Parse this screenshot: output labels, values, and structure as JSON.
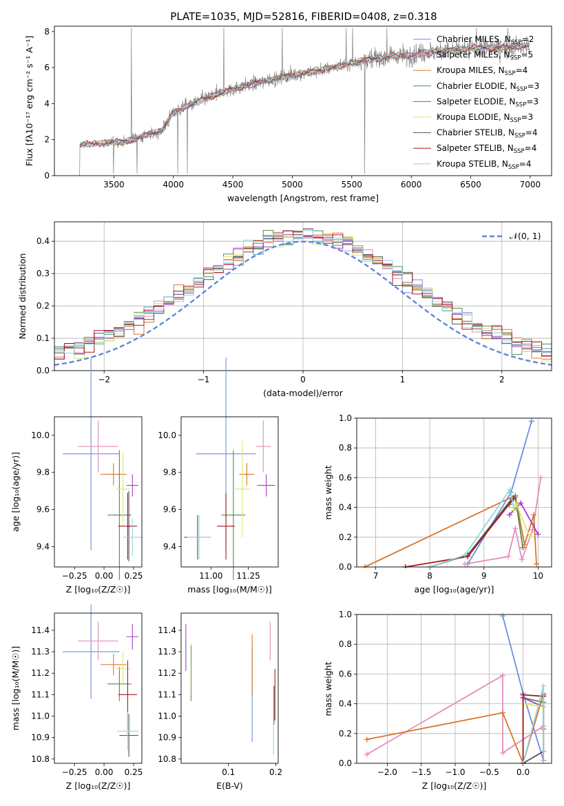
{
  "figure_title": "PLATE=1035, MJD=52816, FIBERID=0408, z=0.318",
  "colors": {
    "Chabrier MILES": "#6a8fd8",
    "Salpeter MILES": "#e48cbd",
    "Kroupa MILES": "#d8762a",
    "Chabrier ELODIE": "#4f8a4f",
    "Salpeter ELODIE": "#a13cc4",
    "Kroupa ELODIE": "#dde66a",
    "Chabrier STELIB": "#555555",
    "Salpeter STELIB": "#a8161b",
    "Kroupa STELIB": "#8fd6e4",
    "data": "#7f7f7f",
    "normal": "#5b87d8"
  },
  "chart_data": [
    {
      "id": "spectrum",
      "type": "line",
      "title": "PLATE=1035, MJD=52816, FIBERID=0408, z=0.318",
      "xlabel": "wavelength [Angstrom, rest frame]",
      "ylabel": "Flux [f$_\\lambda$10$^{-17}$ erg cm$^{-2}$ s$^{-1}$ A$^{-1}$]",
      "ylabel_text": "Flux [fλ10⁻¹⁷ erg cm⁻² s⁻¹ A⁻¹]",
      "xlim": [
        3000,
        7180
      ],
      "ylim": [
        0,
        8.3
      ],
      "xticks": [
        3500,
        4000,
        4500,
        5000,
        5500,
        6000,
        6500,
        7000
      ],
      "yticks": [
        0,
        2,
        4,
        6,
        8
      ],
      "legend_position": "top-right",
      "legend": [
        {
          "name": "Chabrier MILES",
          "label": "Chabrier MILES, N",
          "sub": "SSP",
          "tail": "=2"
        },
        {
          "name": "Salpeter MILES",
          "label": "Salpeter MILES, N",
          "sub": "SSP",
          "tail": "=5"
        },
        {
          "name": "Kroupa MILES",
          "label": "Kroupa MILES, N",
          "sub": "SSP",
          "tail": "=4"
        },
        {
          "name": "Chabrier ELODIE",
          "label": "Chabrier ELODIE, N",
          "sub": "SSP",
          "tail": "=3"
        },
        {
          "name": "Salpeter ELODIE",
          "label": "Salpeter ELODIE, N",
          "sub": "SSP",
          "tail": "=3"
        },
        {
          "name": "Kroupa ELODIE",
          "label": "Kroupa ELODIE, N",
          "sub": "SSP",
          "tail": "=3"
        },
        {
          "name": "Chabrier STELIB",
          "label": "Chabrier STELIB, N",
          "sub": "SSP",
          "tail": "=4"
        },
        {
          "name": "Salpeter STELIB",
          "label": "Salpeter STELIB, N",
          "sub": "SSP",
          "tail": "=4"
        },
        {
          "name": "Kroupa STELIB",
          "label": "Kroupa STELIB, N",
          "sub": "SSP",
          "tail": "=4"
        }
      ],
      "continuum": {
        "x": [
          3200,
          3400,
          3600,
          3800,
          3900,
          4000,
          4200,
          4400,
          4600,
          4800,
          5000,
          5200,
          5400,
          5600,
          5800,
          6000,
          6200,
          6400,
          6600,
          6800,
          7000
        ],
        "y": [
          1.7,
          1.8,
          1.9,
          2.3,
          2.5,
          3.5,
          4.1,
          4.6,
          5.0,
          5.3,
          5.6,
          5.8,
          6.1,
          6.4,
          6.6,
          6.7,
          6.9,
          7.0,
          7.1,
          7.1,
          7.2
        ]
      },
      "spectrum_start": 3200,
      "spectrum_end": 7000
    },
    {
      "id": "residuals",
      "type": "area",
      "xlabel": "(data-model)/error",
      "ylabel": "Normed distribution",
      "xlim": [
        -2.5,
        2.5
      ],
      "ylim": [
        0,
        0.46
      ],
      "xticks": [
        -2,
        -1,
        0,
        1,
        2
      ],
      "yticks": [
        0.0,
        0.1,
        0.2,
        0.3,
        0.4
      ],
      "grid": true,
      "legend_position": "top-right",
      "legend_label": "𝒩(0, 1)",
      "normal": {
        "mu": 0,
        "sigma": 1
      },
      "bin_width": 0.1
    },
    {
      "id": "age-vs-Z",
      "type": "scatter",
      "xlabel": "Z [log₁₀(Z/Z☉)]",
      "ylabel": "age  [log₁₀(age/yr)]",
      "xlim": [
        -0.42,
        0.32
      ],
      "ylim": [
        9.29,
        10.1
      ],
      "xticks": [
        -0.25,
        0.0,
        0.25
      ],
      "yticks": [
        9.4,
        9.6,
        9.8,
        10.0
      ],
      "points": [
        {
          "series": "Chabrier MILES",
          "x": -0.11,
          "y": 9.9,
          "xerr": 0.24,
          "yerr": 0.52
        },
        {
          "series": "Salpeter MILES",
          "x": -0.05,
          "y": 9.94,
          "xerr": 0.17,
          "yerr": 0.14
        },
        {
          "series": "Kroupa MILES",
          "x": 0.08,
          "y": 9.79,
          "xerr": 0.11,
          "yerr": 0.06
        },
        {
          "series": "Chabrier ELODIE",
          "x": 0.13,
          "y": 9.57,
          "xerr": 0.1,
          "yerr": 0.35
        },
        {
          "series": "Salpeter ELODIE",
          "x": 0.24,
          "y": 9.73,
          "xerr": 0.05,
          "yerr": 0.06
        },
        {
          "series": "Kroupa ELODIE",
          "x": 0.16,
          "y": 9.71,
          "xerr": 0.06,
          "yerr": 0.2
        },
        {
          "series": "Chabrier STELIB",
          "x": 0.21,
          "y": 9.51,
          "xerr": 0.02,
          "yerr": 0.19
        },
        {
          "series": "Salpeter STELIB",
          "x": 0.2,
          "y": 9.51,
          "xerr": 0.08,
          "yerr": 0.18
        },
        {
          "series": "Kroupa STELIB",
          "x": 0.24,
          "y": 9.45,
          "xerr": 0.08,
          "yerr": 0.1
        }
      ]
    },
    {
      "id": "age-vs-mass",
      "type": "scatter",
      "xlabel": "mass [log₁₀(M/M☉)]",
      "ylabel": "",
      "xlim": [
        10.8,
        11.45
      ],
      "ylim": [
        9.29,
        10.1
      ],
      "xticks": [
        11.0,
        11.25
      ],
      "yticks": [
        9.4,
        9.6,
        9.8,
        10.0
      ],
      "points": [
        {
          "series": "Chabrier MILES",
          "x": 11.1,
          "y": 9.9,
          "xerr": 0.2,
          "yerr": 0.52
        },
        {
          "series": "Salpeter MILES",
          "x": 11.35,
          "y": 9.94,
          "xerr": 0.05,
          "yerr": 0.14
        },
        {
          "series": "Kroupa MILES",
          "x": 11.24,
          "y": 9.79,
          "xerr": 0.05,
          "yerr": 0.06
        },
        {
          "series": "Chabrier ELODIE",
          "x": 11.15,
          "y": 9.57,
          "xerr": 0.08,
          "yerr": 0.35
        },
        {
          "series": "Salpeter ELODIE",
          "x": 11.37,
          "y": 9.73,
          "xerr": 0.06,
          "yerr": 0.06
        },
        {
          "series": "Kroupa ELODIE",
          "x": 11.21,
          "y": 9.71,
          "xerr": 0.05,
          "yerr": 0.26
        },
        {
          "series": "Chabrier STELIB",
          "x": 10.91,
          "y": 9.45,
          "xerr": 0.09,
          "yerr": 0.12
        },
        {
          "series": "Salpeter STELIB",
          "x": 11.1,
          "y": 9.51,
          "xerr": 0.06,
          "yerr": 0.18
        },
        {
          "series": "Kroupa STELIB",
          "x": 10.92,
          "y": 9.45,
          "xerr": 0.08,
          "yerr": 0.12
        }
      ]
    },
    {
      "id": "weight-vs-age",
      "type": "line",
      "xlabel": "age  [log₁₀(age/yr)]",
      "ylabel": "mass weight",
      "xlim": [
        6.65,
        10.25
      ],
      "ylim": [
        0,
        1.0
      ],
      "xticks": [
        7,
        8,
        9,
        10
      ],
      "yticks": [
        0.0,
        0.2,
        0.4,
        0.6,
        0.8,
        1.0
      ],
      "grid": true,
      "series": [
        {
          "name": "Chabrier MILES",
          "x": [
            8.7,
            9.5,
            9.88
          ],
          "y": [
            0.02,
            0.5,
            0.98
          ]
        },
        {
          "name": "Salpeter MILES",
          "x": [
            8.65,
            9.45,
            9.58,
            9.7,
            9.9,
            10.05
          ],
          "y": [
            0.02,
            0.07,
            0.26,
            0.05,
            0.25,
            0.6
          ]
        },
        {
          "name": "Kroupa MILES",
          "x": [
            6.8,
            9.58,
            9.75,
            9.92,
            9.97
          ],
          "y": [
            0.0,
            0.48,
            0.15,
            0.35,
            0.02
          ]
        },
        {
          "name": "Chabrier ELODIE",
          "x": [
            9.47,
            9.58,
            9.72
          ],
          "y": [
            0.42,
            0.47,
            0.13
          ]
        },
        {
          "name": "Salpeter ELODIE",
          "x": [
            9.47,
            9.68,
            10.0
          ],
          "y": [
            0.35,
            0.43,
            0.22
          ]
        },
        {
          "name": "Kroupa ELODIE",
          "x": [
            9.55,
            9.6,
            9.85
          ],
          "y": [
            0.38,
            0.42,
            0.2
          ]
        },
        {
          "name": "Chabrier STELIB",
          "x": [
            8.0,
            8.7,
            9.52
          ],
          "y": [
            0.0,
            0.08,
            0.46
          ]
        },
        {
          "name": "Salpeter STELIB",
          "x": [
            7.55,
            8.7,
            9.55
          ],
          "y": [
            0.0,
            0.07,
            0.46
          ]
        },
        {
          "name": "Kroupa STELIB",
          "x": [
            8.0,
            8.65,
            9.48,
            9.55
          ],
          "y": [
            0.0,
            0.08,
            0.52,
            0.4
          ]
        }
      ]
    },
    {
      "id": "mass-vs-Z",
      "type": "scatter",
      "xlabel": "Z [log₁₀(Z/Z☉)]",
      "ylabel": "mass [log₁₀(M/M☉)]",
      "xlim": [
        -0.42,
        0.32
      ],
      "ylim": [
        10.78,
        11.48
      ],
      "xticks": [
        -0.25,
        0.0,
        0.25
      ],
      "yticks": [
        10.8,
        10.9,
        11.0,
        11.1,
        11.2,
        11.3,
        11.4
      ],
      "points": [
        {
          "series": "Chabrier MILES",
          "x": -0.11,
          "y": 11.3,
          "xerr": 0.24,
          "yerr": 0.22
        },
        {
          "series": "Salpeter MILES",
          "x": -0.05,
          "y": 11.35,
          "xerr": 0.17,
          "yerr": 0.09
        },
        {
          "series": "Kroupa MILES",
          "x": 0.08,
          "y": 11.24,
          "xerr": 0.11,
          "yerr": 0.05
        },
        {
          "series": "Chabrier ELODIE",
          "x": 0.13,
          "y": 11.15,
          "xerr": 0.1,
          "yerr": 0.08
        },
        {
          "series": "Salpeter ELODIE",
          "x": 0.24,
          "y": 11.37,
          "xerr": 0.05,
          "yerr": 0.06
        },
        {
          "series": "Kroupa ELODIE",
          "x": 0.16,
          "y": 11.22,
          "xerr": 0.06,
          "yerr": 0.08
        },
        {
          "series": "Chabrier STELIB",
          "x": 0.21,
          "y": 10.91,
          "xerr": 0.08,
          "yerr": 0.1
        },
        {
          "series": "Salpeter STELIB",
          "x": 0.2,
          "y": 11.1,
          "xerr": 0.08,
          "yerr": 0.16
        },
        {
          "series": "Kroupa STELIB",
          "x": 0.2,
          "y": 10.93,
          "xerr": 0.09,
          "yerr": 0.09
        }
      ]
    },
    {
      "id": "mass-vs-ebv",
      "type": "scatter",
      "xlabel": "E(B-V)",
      "ylabel": "",
      "xlim": [
        0.0,
        0.205
      ],
      "ylim": [
        10.78,
        11.48
      ],
      "xticks": [
        0.1,
        0.2
      ],
      "yticks": [
        10.8,
        10.9,
        11.0,
        11.1,
        11.2,
        11.3,
        11.4
      ],
      "points": [
        {
          "series": "Chabrier MILES",
          "x": 0.15,
          "y": 11.1,
          "yerr": 0.22
        },
        {
          "series": "Salpeter MILES",
          "x": 0.188,
          "y": 11.35,
          "yerr": 0.09
        },
        {
          "series": "Kroupa MILES",
          "x": 0.15,
          "y": 11.24,
          "yerr": 0.14
        },
        {
          "series": "Chabrier ELODIE",
          "x": 0.021,
          "y": 11.2,
          "yerr": 0.13
        },
        {
          "series": "Salpeter ELODIE",
          "x": 0.01,
          "y": 11.32,
          "yerr": 0.11
        },
        {
          "series": "Kroupa ELODIE",
          "x": 0.022,
          "y": 11.22,
          "yerr": 0.12
        },
        {
          "series": "Chabrier STELIB",
          "x": 0.196,
          "y": 11.05,
          "yerr": 0.09
        },
        {
          "series": "Salpeter STELIB",
          "x": 0.198,
          "y": 11.1,
          "yerr": 0.12
        },
        {
          "series": "Kroupa STELIB",
          "x": 0.195,
          "y": 10.9,
          "yerr": 0.08
        }
      ]
    },
    {
      "id": "weight-vs-Z",
      "type": "line",
      "xlabel": "Z [log₁₀(Z/Z☉)]",
      "ylabel": "mass weight",
      "xlim": [
        -2.45,
        0.42
      ],
      "ylim": [
        0,
        1.0
      ],
      "xticks": [
        -2.0,
        -1.5,
        -1.0,
        -0.5,
        0.0
      ],
      "yticks": [
        0.0,
        0.2,
        0.4,
        0.6,
        0.8,
        1.0
      ],
      "grid": true,
      "series": [
        {
          "name": "Chabrier MILES",
          "x": [
            -0.3,
            0.0,
            0.3
          ],
          "y": [
            0.99,
            0.47,
            0.02
          ]
        },
        {
          "name": "Salpeter MILES",
          "x": [
            -2.3,
            -0.3,
            -0.3,
            0.3,
            0.3
          ],
          "y": [
            0.06,
            0.59,
            0.07,
            0.25,
            0.02
          ]
        },
        {
          "name": "Kroupa MILES",
          "x": [
            -2.3,
            -0.3,
            0.0,
            0.3,
            0.3
          ],
          "y": [
            0.16,
            0.34,
            0.0,
            0.47,
            0.23
          ]
        },
        {
          "name": "Chabrier ELODIE",
          "x": [
            0.0,
            0.0,
            0.3,
            0.3
          ],
          "y": [
            0.0,
            0.44,
            0.41,
            0.08
          ]
        },
        {
          "name": "Salpeter ELODIE",
          "x": [
            0.0,
            0.0,
            0.3
          ],
          "y": [
            0.0,
            0.44,
            0.38
          ]
        },
        {
          "name": "Kroupa ELODIE",
          "x": [
            0.0,
            0.0,
            0.3
          ],
          "y": [
            0.0,
            0.4,
            0.38
          ]
        },
        {
          "name": "Chabrier STELIB",
          "x": [
            0.0,
            0.3,
            0.3
          ],
          "y": [
            0.0,
            0.08,
            0.46
          ]
        },
        {
          "name": "Salpeter STELIB",
          "x": [
            0.0,
            0.0,
            0.3
          ],
          "y": [
            0.0,
            0.46,
            0.45
          ]
        },
        {
          "name": "Kroupa STELIB",
          "x": [
            0.0,
            0.3,
            0.3
          ],
          "y": [
            0.0,
            0.52,
            0.08
          ]
        }
      ]
    }
  ]
}
